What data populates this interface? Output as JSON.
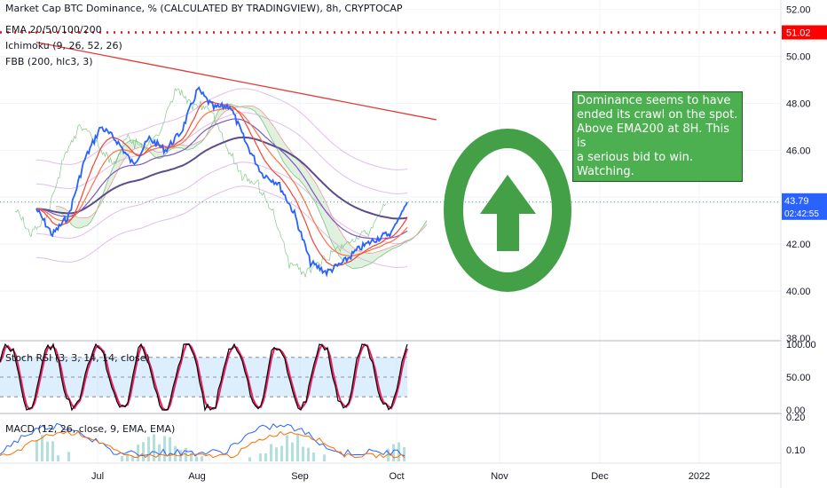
{
  "legend": {
    "main_title": "Market Cap BTC Dominance, % (CALCULATED BY TRADINGVIEW), 8h, CRYPTOCAP",
    "ema": "EMA 20/50/100/200",
    "ichimoku": "Ichimoku (9, 26, 52, 26)",
    "fbb": "FBB (200, hlc3, 3)",
    "stoch": "Stoch RSI (3, 3, 14, 14, close)",
    "macd": "MACD (12, 26, close, 9, EMA, EMA)"
  },
  "note": {
    "lines": [
      "Dominance seems to have",
      "ended its crawl on the spot.",
      "Above EMA200 at 8H. This is",
      "a serious bid to win. Watching."
    ]
  },
  "colors": {
    "price": "#2962ff",
    "ema20": "#f44336",
    "ema50": "#ff7043",
    "ema100": "#7e57c2",
    "ema200": "#5c4c8a",
    "trendline": "#e53935",
    "level_line": "#ff0000",
    "note_bg": "#4caf50",
    "arrow": "#43a047",
    "stoch_k": "#000000",
    "stoch_d": "#e91e63",
    "stoch_band": "#bbdefb",
    "macd_line": "#2962ff",
    "signal_line": "#ff6d00",
    "histogram": "#26a69a",
    "price_badge": "#2962ff",
    "level_badge": "#ff0000"
  },
  "chart_data": [
    {
      "type": "line",
      "panel": "price",
      "title": "Market Cap BTC Dominance, % (CALCULATED BY TRADINGVIEW), 8h, CRYPTOCAP",
      "x_ticks": [
        "Jul",
        "Aug",
        "Sep",
        "Oct",
        "Nov",
        "Dec",
        "2022"
      ],
      "y_ticks": [
        "52.00",
        "50.00",
        "48.00",
        "46.00",
        "44.00",
        "42.00",
        "40.00",
        "38.00"
      ],
      "ylim": [
        38,
        52.4
      ],
      "current_price": "43.79",
      "countdown": "02:42:55",
      "level": "51.02",
      "x": [
        "Jun 12",
        "Jun 17",
        "Jun 22",
        "Jun 27",
        "Jul 2",
        "Jul 7",
        "Jul 12",
        "Jul 17",
        "Jul 22",
        "Jul 27",
        "Aug 1",
        "Aug 6",
        "Aug 11",
        "Aug 16",
        "Aug 21",
        "Aug 26",
        "Aug 31",
        "Sep 5",
        "Sep 10",
        "Sep 15",
        "Sep 20",
        "Sep 25",
        "Sep 30",
        "Oct 5"
      ],
      "series": [
        {
          "values": [
            43.5,
            42.4,
            43.2,
            45.6,
            47.0,
            46.4,
            45.4,
            46.5,
            46.0,
            46.8,
            48.6,
            47.8,
            47.9,
            46.3,
            45.0,
            44.6,
            43.3,
            41.2,
            40.8,
            41.2,
            41.8,
            42.2,
            42.5,
            43.79
          ]
        }
      ],
      "trendline": {
        "x": [
          "Jun 12",
          "Oct 14"
        ],
        "y": [
          50.6,
          47.3
        ]
      }
    },
    {
      "type": "line",
      "panel": "stoch_rsi",
      "title": "Stoch RSI (3, 3, 14, 14, close)",
      "y_ticks": [
        "100.00",
        "50.00",
        "0.00"
      ],
      "ylim": [
        0,
        100
      ],
      "bands": [
        20,
        50,
        80
      ]
    },
    {
      "type": "line",
      "panel": "macd",
      "title": "MACD (12, 26, close, 9, EMA, EMA)",
      "y_ticks": [
        "0.20",
        "0.10"
      ]
    }
  ]
}
